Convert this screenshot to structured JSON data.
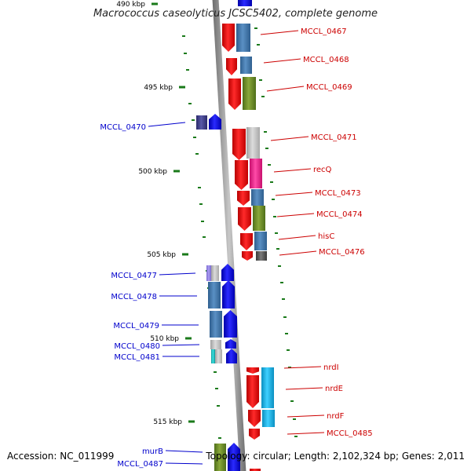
{
  "title": "Macrococcus caseolyticus JCSC5402, complete genome",
  "footer": {
    "accession": "Accession: NC_011999",
    "summary": "Topology: circular; Length: 2,102,324 bp; Genes: 2,011"
  },
  "colors": {
    "forward_label": "#cc0000",
    "reverse_label": "#0000cc",
    "tick": "#1a7a1a",
    "backbone": "#8c8c8c"
  },
  "ruler": [
    {
      "label": "490 kbp"
    },
    {
      "label": "495 kbp"
    },
    {
      "label": "500 kbp"
    },
    {
      "label": "505 kbp"
    },
    {
      "label": "510 kbp"
    },
    {
      "label": "515 kbp"
    }
  ],
  "genes": [
    {
      "label": "MCCL_0467",
      "strand": "forward"
    },
    {
      "label": "MCCL_0468",
      "strand": "forward"
    },
    {
      "label": "MCCL_0469",
      "strand": "forward"
    },
    {
      "label": "MCCL_0470",
      "strand": "reverse"
    },
    {
      "label": "MCCL_0471",
      "strand": "forward"
    },
    {
      "label": "recQ",
      "strand": "forward"
    },
    {
      "label": "MCCL_0473",
      "strand": "forward"
    },
    {
      "label": "MCCL_0474",
      "strand": "forward"
    },
    {
      "label": "hisC",
      "strand": "forward"
    },
    {
      "label": "MCCL_0476",
      "strand": "forward"
    },
    {
      "label": "MCCL_0477",
      "strand": "reverse"
    },
    {
      "label": "MCCL_0478",
      "strand": "reverse"
    },
    {
      "label": "MCCL_0479",
      "strand": "reverse"
    },
    {
      "label": "MCCL_0480",
      "strand": "reverse"
    },
    {
      "label": "MCCL_0481",
      "strand": "reverse"
    },
    {
      "label": "nrdI",
      "strand": "forward"
    },
    {
      "label": "nrdE",
      "strand": "forward"
    },
    {
      "label": "nrdF",
      "strand": "forward"
    },
    {
      "label": "MCCL_0485",
      "strand": "forward"
    },
    {
      "label": "murB",
      "strand": "reverse"
    },
    {
      "label": "MCCL_0487",
      "strand": "reverse"
    }
  ]
}
